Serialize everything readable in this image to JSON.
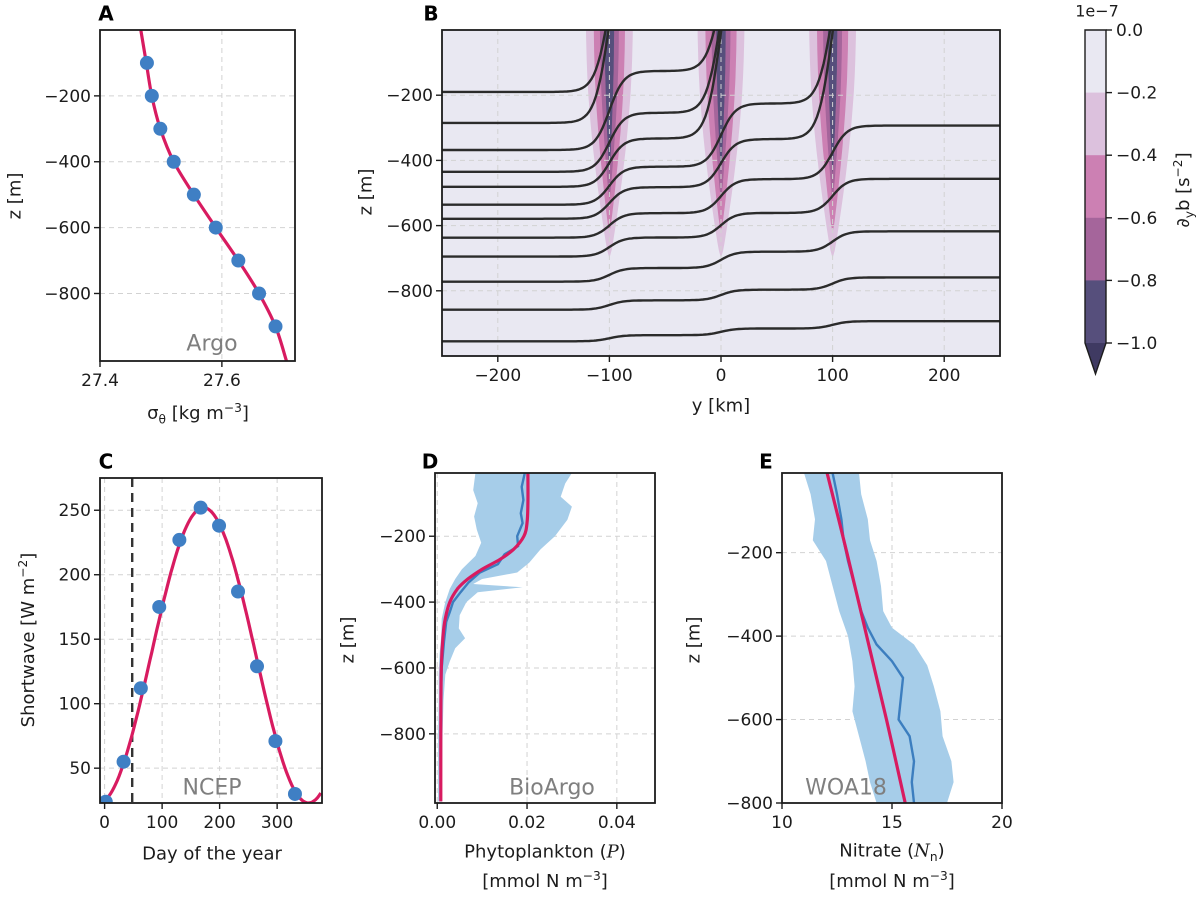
{
  "colors": {
    "fit_line": "#d81b60",
    "marker": "#3f7fc4",
    "obs_line": "#3c7ebf",
    "band": "#a6cde9",
    "grid": "#d2d2d2",
    "axes": "#1c1c1c",
    "contour": "#2b2b2b",
    "panel_b_background": "#e9e8f2",
    "tag_text": "#7f7f7f",
    "event_line": "#333333"
  },
  "chart_data": [
    {
      "type": "scatter",
      "panel_label": "A",
      "tag": "Argo",
      "xlabel_html": "σ<sub>θ</sub> [kg m<sup>−3</sup>]",
      "ylabel": "z [m]",
      "xlim": [
        27.4,
        27.72
      ],
      "xticks": [
        27.4,
        27.6
      ],
      "xtick_labels": [
        "27.4",
        "27.6"
      ],
      "ylim": [
        0,
        -1005
      ],
      "yticks": [
        -200,
        -400,
        -600,
        -800
      ],
      "ytick_labels": [
        "−200",
        "−400",
        "−600",
        "−800"
      ],
      "points": {
        "z": [
          -100,
          -200,
          -300,
          -400,
          -500,
          -600,
          -700,
          -800,
          -900
        ],
        "sigma": [
          27.477,
          27.485,
          27.499,
          27.521,
          27.554,
          27.59,
          27.627,
          27.661,
          27.688
        ]
      },
      "fit": [
        [
          27.467,
          0
        ],
        [
          27.476,
          -100
        ],
        [
          27.485,
          -200
        ],
        [
          27.499,
          -300
        ],
        [
          27.521,
          -400
        ],
        [
          27.554,
          -500
        ],
        [
          27.59,
          -600
        ],
        [
          27.627,
          -700
        ],
        [
          27.661,
          -800
        ],
        [
          27.688,
          -900
        ],
        [
          27.706,
          -1005
        ]
      ]
    },
    {
      "type": "heatmap",
      "panel_label": "B",
      "xlabel": "y [km]",
      "ylabel": "z [m]",
      "xlim": [
        -250,
        250
      ],
      "xticks": [
        -200,
        -100,
        0,
        100,
        200
      ],
      "xtick_labels": [
        "−200",
        "−100",
        "0",
        "100",
        "200"
      ],
      "ylim": [
        0,
        -1000
      ],
      "yticks": [
        -200,
        -400,
        -600,
        -800
      ],
      "ytick_labels": [
        "−200",
        "−400",
        "−600",
        "−800"
      ],
      "front_centers_km": [
        -100,
        0,
        100
      ],
      "front_tiers": [
        {
          "halfwidth_km": 21,
          "tip_z": -700,
          "color": "#dcc1dd"
        },
        {
          "halfwidth_km": 14,
          "tip_z": -620,
          "color": "#cc80b3"
        },
        {
          "halfwidth_km": 8.5,
          "tip_z": -520,
          "color": "#a5659b"
        },
        {
          "halfwidth_km": 4.2,
          "tip_z": -440,
          "color": "#564f7c"
        }
      ],
      "isopycnal_left_depths": [
        -190,
        -285,
        -368,
        -435,
        -481,
        -536,
        -579,
        -637,
        -695,
        -772,
        -858,
        -955
      ],
      "rise_model": {
        "amplitude": 1200,
        "efolding_m": 230,
        "outcrop_threshold_m": -70,
        "outcrop_overshoot_m": 320,
        "front_halfwidth_km": 6.5
      }
    },
    {
      "type": "scatter",
      "panel_label": "C",
      "tag": "NCEP",
      "xlabel": "Day of the year",
      "ylabel_html": "Shortwave [W m<sup>−2</sup>]",
      "xlim": [
        -8,
        378
      ],
      "xticks": [
        0,
        100,
        200,
        300
      ],
      "xtick_labels": [
        "0",
        "100",
        "200",
        "300"
      ],
      "ylim": [
        275,
        23
      ],
      "yticks": [
        50,
        100,
        150,
        200,
        250
      ],
      "ytick_labels": [
        "50",
        "100",
        "150",
        "200",
        "250"
      ],
      "points": {
        "day": [
          2,
          33,
          63,
          95,
          130,
          167,
          199,
          232,
          265,
          297,
          331
        ],
        "shortwave": [
          24,
          55,
          112,
          175,
          227,
          252,
          238,
          187,
          129,
          71,
          30
        ]
      },
      "curve": {
        "mean": 137.5,
        "amplitude": 114.5,
        "peak_day": 172,
        "period": 365
      },
      "dashed_day": 48
    },
    {
      "type": "line",
      "panel_label": "D",
      "tag": "BioArgo",
      "xlabel_html": "Phytoplankton (<i class=\"scr\">P</i>)",
      "units_html": "[mmol N m<sup>−3</sup>]",
      "ylabel": "z [m]",
      "xlim": [
        -0.0005,
        0.0485
      ],
      "xticks": [
        0,
        0.02,
        0.04
      ],
      "xtick_labels": [
        "0.00",
        "0.02",
        "0.04"
      ],
      "ylim": [
        -8,
        -1010
      ],
      "yticks": [
        -200,
        -400,
        -600,
        -800
      ],
      "ytick_labels": [
        "−200",
        "−400",
        "−600",
        "−800"
      ],
      "band_upper": [
        [
          -8,
          0.03
        ],
        [
          -40,
          0.0285
        ],
        [
          -80,
          0.0275
        ],
        [
          -110,
          0.03
        ],
        [
          -150,
          0.029
        ],
        [
          -200,
          0.0262
        ],
        [
          -240,
          0.023
        ],
        [
          -280,
          0.0205
        ],
        [
          -310,
          0.0178
        ],
        [
          -330,
          0.01
        ],
        [
          -345,
          0.008
        ],
        [
          -355,
          0.019
        ],
        [
          -370,
          0.009
        ],
        [
          -400,
          0.0065
        ],
        [
          -440,
          0.005
        ],
        [
          -480,
          0.0048
        ],
        [
          -510,
          0.0062
        ],
        [
          -540,
          0.004
        ],
        [
          -580,
          0.0028
        ],
        [
          -620,
          0.0018
        ],
        [
          -700,
          0.0014
        ],
        [
          -800,
          0.0012
        ],
        [
          -1005,
          0.001
        ]
      ],
      "band_lower": [
        [
          -8,
          0.0085
        ],
        [
          -60,
          0.008
        ],
        [
          -100,
          0.009
        ],
        [
          -140,
          0.0082
        ],
        [
          -180,
          0.0088
        ],
        [
          -220,
          0.0098
        ],
        [
          -260,
          0.0085
        ],
        [
          -300,
          0.0055
        ],
        [
          -330,
          0.004
        ],
        [
          -360,
          0.0028
        ],
        [
          -400,
          0.0018
        ],
        [
          -450,
          0.001
        ],
        [
          -500,
          0.0009
        ],
        [
          -560,
          0.0005
        ],
        [
          -620,
          0.0003
        ],
        [
          -700,
          0.0003
        ],
        [
          -800,
          0.0002
        ],
        [
          -1005,
          0.0002
        ]
      ],
      "obs_line": [
        [
          -8,
          0.0195
        ],
        [
          -50,
          0.0188
        ],
        [
          -90,
          0.0192
        ],
        [
          -130,
          0.0186
        ],
        [
          -160,
          0.019
        ],
        [
          -200,
          0.0178
        ],
        [
          -230,
          0.018
        ],
        [
          -255,
          0.015
        ],
        [
          -285,
          0.0135
        ],
        [
          -310,
          0.0095
        ],
        [
          -340,
          0.007
        ],
        [
          -370,
          0.0052
        ],
        [
          -400,
          0.0035
        ],
        [
          -430,
          0.0028
        ],
        [
          -460,
          0.002
        ],
        [
          -520,
          0.0015
        ],
        [
          -600,
          0.001
        ],
        [
          -700,
          0.0008
        ],
        [
          -800,
          0.0008
        ],
        [
          -1005,
          0.0008
        ]
      ],
      "fit_line": [
        [
          -8,
          0.0202
        ],
        [
          -100,
          0.0202
        ],
        [
          -160,
          0.02
        ],
        [
          -200,
          0.0193
        ],
        [
          -240,
          0.017
        ],
        [
          -270,
          0.014
        ],
        [
          -300,
          0.01
        ],
        [
          -330,
          0.0068
        ],
        [
          -360,
          0.0045
        ],
        [
          -400,
          0.0028
        ],
        [
          -450,
          0.0018
        ],
        [
          -500,
          0.0013
        ],
        [
          -600,
          0.0009
        ],
        [
          -800,
          0.0008
        ],
        [
          -1005,
          0.0008
        ]
      ]
    },
    {
      "type": "line",
      "panel_label": "E",
      "tag": "WOA18",
      "xlabel_html": "Nitrate (<i class=\"scr\">N</i><sub>n</sub>)",
      "units_html": "[mmol N m<sup>−3</sup>]",
      "ylabel": "z [m]",
      "xlim": [
        10,
        20
      ],
      "xticks": [
        10,
        15,
        20
      ],
      "xtick_labels": [
        "10",
        "15",
        "20"
      ],
      "ylim": [
        -9,
        -800
      ],
      "yticks": [
        -200,
        -400,
        -600,
        -800
      ],
      "ytick_labels": [
        "−200",
        "−400",
        "−600",
        "−800"
      ],
      "band_lower": [
        [
          -9,
          11.0
        ],
        [
          -60,
          11.3
        ],
        [
          -120,
          11.5
        ],
        [
          -170,
          11.4
        ],
        [
          -220,
          12.0
        ],
        [
          -280,
          12.3
        ],
        [
          -340,
          12.6
        ],
        [
          -400,
          13.0
        ],
        [
          -460,
          13.2
        ],
        [
          -520,
          13.3
        ],
        [
          -580,
          13.2
        ],
        [
          -640,
          13.5
        ],
        [
          -700,
          13.8
        ],
        [
          -750,
          14.0
        ],
        [
          -800,
          14.3
        ]
      ],
      "band_upper": [
        [
          -9,
          13.5
        ],
        [
          -60,
          13.6
        ],
        [
          -120,
          13.9
        ],
        [
          -170,
          14.0
        ],
        [
          -220,
          14.3
        ],
        [
          -280,
          14.5
        ],
        [
          -340,
          14.6
        ],
        [
          -380,
          15.0
        ],
        [
          -420,
          16.0
        ],
        [
          -470,
          16.6
        ],
        [
          -520,
          16.9
        ],
        [
          -580,
          17.2
        ],
        [
          -640,
          17.3
        ],
        [
          -700,
          17.7
        ],
        [
          -750,
          17.8
        ],
        [
          -800,
          17.5
        ]
      ],
      "obs_line": [
        [
          -9,
          12.3
        ],
        [
          -60,
          12.5
        ],
        [
          -120,
          12.7
        ],
        [
          -170,
          12.8
        ],
        [
          -220,
          13.0
        ],
        [
          -280,
          13.3
        ],
        [
          -340,
          13.6
        ],
        [
          -380,
          13.9
        ],
        [
          -420,
          14.3
        ],
        [
          -460,
          15.0
        ],
        [
          -500,
          15.5
        ],
        [
          -550,
          15.4
        ],
        [
          -600,
          15.3
        ],
        [
          -640,
          15.8
        ],
        [
          -700,
          16.0
        ],
        [
          -750,
          15.9
        ],
        [
          -800,
          16.0
        ]
      ],
      "fit_line": [
        [
          -9,
          12.05
        ],
        [
          -200,
          12.95
        ],
        [
          -400,
          13.85
        ],
        [
          -600,
          14.75
        ],
        [
          -800,
          15.6
        ]
      ]
    },
    {
      "type": "colorbar",
      "title": "1e−7",
      "label_html": "∂<sub>y</sub>b [s<sup>−2</sup>]",
      "tick_labels": [
        "0.0",
        "−0.2",
        "−0.4",
        "−0.6",
        "−0.8",
        "−1.0"
      ],
      "levels": [
        0,
        -0.2,
        -0.4,
        -0.6,
        -0.8,
        -1.0
      ],
      "segment_colors": [
        "#e9e8f2",
        "#dcc1dd",
        "#cc80b3",
        "#a5659b",
        "#564f7c"
      ],
      "arrow_color": "#3f3a62"
    }
  ]
}
